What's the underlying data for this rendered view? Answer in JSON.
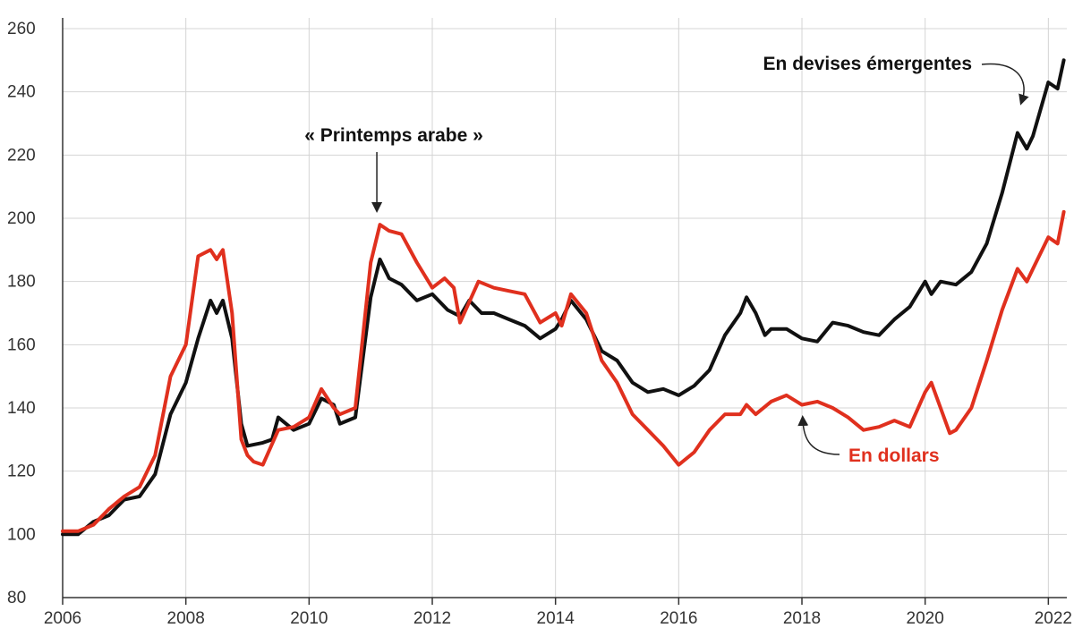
{
  "colors": {
    "dollars": "#e0301e",
    "emerging": "#111111",
    "grid": "#d4d4d4",
    "axis": "#333333"
  },
  "chart_data": {
    "type": "line",
    "title": "",
    "xlabel": "",
    "ylabel": "",
    "xlim": [
      2006,
      2022.3
    ],
    "ylim": [
      80,
      260
    ],
    "grid": "both",
    "legend": "none",
    "x_ticks": [
      "2006",
      "2008",
      "2010",
      "2012",
      "2014",
      "2016",
      "2018",
      "2020",
      "2022"
    ],
    "y_ticks": [
      "80",
      "100",
      "120",
      "140",
      "160",
      "180",
      "200",
      "220",
      "240",
      "260"
    ],
    "annotations": {
      "arab_spring": {
        "text": "« Printemps arabe »",
        "x": 2011.1
      },
      "emerging": {
        "text": "En devises émergentes"
      },
      "dollars": {
        "text": "En dollars"
      }
    },
    "series": [
      {
        "name": "En devises émergentes",
        "color": "#111111",
        "points": [
          [
            2006.0,
            100
          ],
          [
            2006.25,
            100
          ],
          [
            2006.5,
            104
          ],
          [
            2006.75,
            106
          ],
          [
            2007.0,
            111
          ],
          [
            2007.25,
            112
          ],
          [
            2007.5,
            119
          ],
          [
            2007.75,
            138
          ],
          [
            2008.0,
            148
          ],
          [
            2008.2,
            162
          ],
          [
            2008.4,
            174
          ],
          [
            2008.5,
            170
          ],
          [
            2008.6,
            174
          ],
          [
            2008.75,
            162
          ],
          [
            2008.9,
            135
          ],
          [
            2009.0,
            128
          ],
          [
            2009.25,
            129
          ],
          [
            2009.4,
            130
          ],
          [
            2009.5,
            137
          ],
          [
            2009.75,
            133
          ],
          [
            2010.0,
            135
          ],
          [
            2010.2,
            143
          ],
          [
            2010.4,
            141
          ],
          [
            2010.5,
            135
          ],
          [
            2010.75,
            137
          ],
          [
            2011.0,
            175
          ],
          [
            2011.15,
            187
          ],
          [
            2011.3,
            181
          ],
          [
            2011.5,
            179
          ],
          [
            2011.75,
            174
          ],
          [
            2012.0,
            176
          ],
          [
            2012.25,
            171
          ],
          [
            2012.45,
            169
          ],
          [
            2012.6,
            174
          ],
          [
            2012.8,
            170
          ],
          [
            2013.0,
            170
          ],
          [
            2013.25,
            168
          ],
          [
            2013.5,
            166
          ],
          [
            2013.75,
            162
          ],
          [
            2014.0,
            165
          ],
          [
            2014.1,
            168
          ],
          [
            2014.25,
            174
          ],
          [
            2014.5,
            168
          ],
          [
            2014.75,
            158
          ],
          [
            2015.0,
            155
          ],
          [
            2015.25,
            148
          ],
          [
            2015.5,
            145
          ],
          [
            2015.75,
            146
          ],
          [
            2016.0,
            144
          ],
          [
            2016.25,
            147
          ],
          [
            2016.5,
            152
          ],
          [
            2016.75,
            163
          ],
          [
            2017.0,
            170
          ],
          [
            2017.1,
            175
          ],
          [
            2017.25,
            170
          ],
          [
            2017.4,
            163
          ],
          [
            2017.5,
            165
          ],
          [
            2017.75,
            165
          ],
          [
            2018.0,
            162
          ],
          [
            2018.25,
            161
          ],
          [
            2018.5,
            167
          ],
          [
            2018.75,
            166
          ],
          [
            2019.0,
            164
          ],
          [
            2019.25,
            163
          ],
          [
            2019.5,
            168
          ],
          [
            2019.75,
            172
          ],
          [
            2020.0,
            180
          ],
          [
            2020.1,
            176
          ],
          [
            2020.25,
            180
          ],
          [
            2020.5,
            179
          ],
          [
            2020.75,
            183
          ],
          [
            2021.0,
            192
          ],
          [
            2021.25,
            208
          ],
          [
            2021.5,
            227
          ],
          [
            2021.65,
            222
          ],
          [
            2021.75,
            226
          ],
          [
            2022.0,
            243
          ],
          [
            2022.15,
            241
          ],
          [
            2022.25,
            250
          ]
        ]
      },
      {
        "name": "En dollars",
        "color": "#e0301e",
        "points": [
          [
            2006.0,
            101
          ],
          [
            2006.25,
            101
          ],
          [
            2006.5,
            103
          ],
          [
            2006.75,
            108
          ],
          [
            2007.0,
            112
          ],
          [
            2007.25,
            115
          ],
          [
            2007.5,
            125
          ],
          [
            2007.75,
            150
          ],
          [
            2008.0,
            160
          ],
          [
            2008.2,
            188
          ],
          [
            2008.4,
            190
          ],
          [
            2008.5,
            187
          ],
          [
            2008.6,
            190
          ],
          [
            2008.75,
            170
          ],
          [
            2008.9,
            130
          ],
          [
            2009.0,
            125
          ],
          [
            2009.1,
            123
          ],
          [
            2009.25,
            122
          ],
          [
            2009.5,
            133
          ],
          [
            2009.75,
            134
          ],
          [
            2010.0,
            137
          ],
          [
            2010.2,
            146
          ],
          [
            2010.4,
            140
          ],
          [
            2010.5,
            138
          ],
          [
            2010.75,
            140
          ],
          [
            2011.0,
            186
          ],
          [
            2011.15,
            198
          ],
          [
            2011.3,
            196
          ],
          [
            2011.5,
            195
          ],
          [
            2011.75,
            186
          ],
          [
            2012.0,
            178
          ],
          [
            2012.2,
            181
          ],
          [
            2012.35,
            178
          ],
          [
            2012.45,
            167
          ],
          [
            2012.75,
            180
          ],
          [
            2013.0,
            178
          ],
          [
            2013.25,
            177
          ],
          [
            2013.5,
            176
          ],
          [
            2013.75,
            167
          ],
          [
            2014.0,
            170
          ],
          [
            2014.1,
            166
          ],
          [
            2014.25,
            176
          ],
          [
            2014.5,
            170
          ],
          [
            2014.75,
            155
          ],
          [
            2015.0,
            148
          ],
          [
            2015.25,
            138
          ],
          [
            2015.5,
            133
          ],
          [
            2015.75,
            128
          ],
          [
            2016.0,
            122
          ],
          [
            2016.25,
            126
          ],
          [
            2016.5,
            133
          ],
          [
            2016.75,
            138
          ],
          [
            2017.0,
            138
          ],
          [
            2017.1,
            141
          ],
          [
            2017.25,
            138
          ],
          [
            2017.5,
            142
          ],
          [
            2017.75,
            144
          ],
          [
            2018.0,
            141
          ],
          [
            2018.25,
            142
          ],
          [
            2018.5,
            140
          ],
          [
            2018.75,
            137
          ],
          [
            2019.0,
            133
          ],
          [
            2019.25,
            134
          ],
          [
            2019.5,
            136
          ],
          [
            2019.75,
            134
          ],
          [
            2020.0,
            145
          ],
          [
            2020.1,
            148
          ],
          [
            2020.25,
            140
          ],
          [
            2020.4,
            132
          ],
          [
            2020.5,
            133
          ],
          [
            2020.75,
            140
          ],
          [
            2021.0,
            155
          ],
          [
            2021.25,
            171
          ],
          [
            2021.5,
            184
          ],
          [
            2021.65,
            180
          ],
          [
            2021.75,
            184
          ],
          [
            2022.0,
            194
          ],
          [
            2022.15,
            192
          ],
          [
            2022.25,
            202
          ]
        ]
      }
    ]
  }
}
